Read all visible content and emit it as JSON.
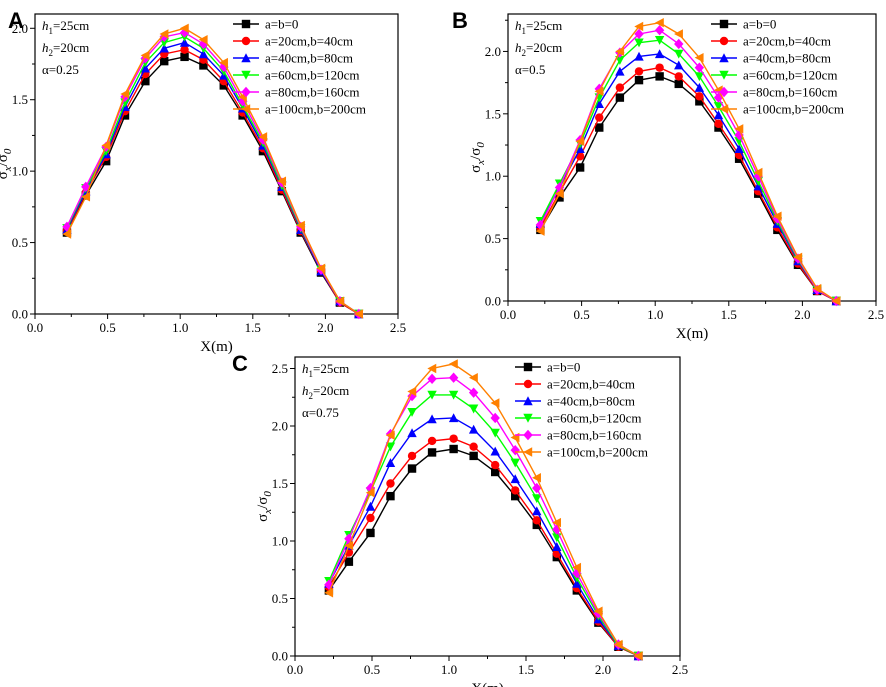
{
  "colors": {
    "black": "#000000",
    "red": "#ff0000",
    "blue": "#0000ff",
    "green": "#00ff00",
    "magenta": "#ff00ff",
    "orange": "#ff8000"
  },
  "chart_data": [
    {
      "id": "A",
      "type": "line",
      "panel_label": "A",
      "xlabel": "X(m)",
      "ylabel": "σx/σ0",
      "xlim": [
        0.0,
        2.5
      ],
      "ylim": [
        0.0,
        2.1
      ],
      "xticks": [
        0.0,
        0.5,
        1.0,
        1.5,
        2.0,
        2.5
      ],
      "xtick_labels": [
        "0.0",
        "0.5",
        "1.0",
        "1.5",
        "2.0",
        "2.5"
      ],
      "yticks": [
        0.0,
        0.5,
        1.0,
        1.5,
        2.0
      ],
      "ytick_labels": [
        "0.0",
        "0.5",
        "1.0",
        "1.5",
        "2.0"
      ],
      "params": [
        "h1=25cm",
        "h2=20cm",
        "α=0.25"
      ],
      "legend_position": "top-right",
      "x": [
        0.22,
        0.35,
        0.49,
        0.62,
        0.76,
        0.89,
        1.03,
        1.16,
        1.3,
        1.43,
        1.57,
        1.7,
        1.83,
        1.97,
        2.1,
        2.23
      ],
      "series": [
        {
          "name": "a=b=0",
          "color": "#000000",
          "marker": "square",
          "values": [
            0.57,
            0.83,
            1.07,
            1.39,
            1.63,
            1.77,
            1.8,
            1.74,
            1.6,
            1.39,
            1.14,
            0.86,
            0.57,
            0.29,
            0.08,
            0.0
          ]
        },
        {
          "name": "a=20cm,b=40cm",
          "color": "#ff0000",
          "marker": "circle",
          "values": [
            0.58,
            0.85,
            1.1,
            1.42,
            1.68,
            1.82,
            1.85,
            1.78,
            1.63,
            1.41,
            1.16,
            0.87,
            0.58,
            0.3,
            0.08,
            0.0
          ]
        },
        {
          "name": "a=40cm,b=80cm",
          "color": "#0000ff",
          "marker": "triangle-up",
          "values": [
            0.59,
            0.86,
            1.12,
            1.45,
            1.72,
            1.86,
            1.9,
            1.82,
            1.67,
            1.44,
            1.18,
            0.89,
            0.59,
            0.3,
            0.09,
            0.0
          ]
        },
        {
          "name": "a=60cm,b=120cm",
          "color": "#00ff00",
          "marker": "triangle-down",
          "values": [
            0.6,
            0.88,
            1.14,
            1.48,
            1.76,
            1.9,
            1.94,
            1.86,
            1.7,
            1.46,
            1.2,
            0.9,
            0.6,
            0.31,
            0.09,
            0.0
          ]
        },
        {
          "name": "a=80cm,b=160cm",
          "color": "#ff00ff",
          "marker": "diamond",
          "values": [
            0.61,
            0.89,
            1.17,
            1.52,
            1.79,
            1.94,
            1.97,
            1.89,
            1.73,
            1.49,
            1.22,
            0.92,
            0.61,
            0.31,
            0.09,
            0.0
          ]
        },
        {
          "name": "a=100cm,b=200cm",
          "color": "#ff8000",
          "marker": "triangle-left",
          "values": [
            0.56,
            0.82,
            1.18,
            1.54,
            1.81,
            1.96,
            2.0,
            1.92,
            1.76,
            1.52,
            1.24,
            0.93,
            0.62,
            0.32,
            0.09,
            0.0
          ]
        }
      ]
    },
    {
      "id": "B",
      "type": "line",
      "panel_label": "B",
      "xlabel": "X(m)",
      "ylabel": "σx/σ0",
      "xlim": [
        0.0,
        2.5
      ],
      "ylim": [
        0.0,
        2.3
      ],
      "xticks": [
        0.0,
        0.5,
        1.0,
        1.5,
        2.0,
        2.5
      ],
      "xtick_labels": [
        "0.0",
        "0.5",
        "1.0",
        "1.5",
        "2.0",
        "2.5"
      ],
      "yticks": [
        0.0,
        0.5,
        1.0,
        1.5,
        2.0
      ],
      "ytick_labels": [
        "0.0",
        "0.5",
        "1.0",
        "1.5",
        "2.0"
      ],
      "params": [
        "h1=25cm",
        "h2=20cm",
        "α=0.5"
      ],
      "legend_position": "top-right",
      "x": [
        0.22,
        0.35,
        0.49,
        0.62,
        0.76,
        0.89,
        1.03,
        1.16,
        1.3,
        1.43,
        1.57,
        1.7,
        1.83,
        1.97,
        2.1,
        2.23
      ],
      "series": [
        {
          "name": "a=b=0",
          "color": "#000000",
          "marker": "square",
          "values": [
            0.57,
            0.83,
            1.07,
            1.39,
            1.63,
            1.77,
            1.8,
            1.74,
            1.6,
            1.39,
            1.14,
            0.86,
            0.57,
            0.29,
            0.08,
            0.0
          ]
        },
        {
          "name": "a=20cm,b=40cm",
          "color": "#ff0000",
          "marker": "circle",
          "values": [
            0.59,
            0.87,
            1.16,
            1.47,
            1.71,
            1.84,
            1.87,
            1.8,
            1.64,
            1.42,
            1.17,
            0.88,
            0.59,
            0.3,
            0.08,
            0.0
          ]
        },
        {
          "name": "a=40cm,b=80cm",
          "color": "#0000ff",
          "marker": "triangle-up",
          "values": [
            0.62,
            0.91,
            1.22,
            1.58,
            1.84,
            1.96,
            1.98,
            1.89,
            1.71,
            1.49,
            1.22,
            0.92,
            0.62,
            0.32,
            0.09,
            0.0
          ]
        },
        {
          "name": "a=60cm,b=120cm",
          "color": "#00ff00",
          "marker": "triangle-down",
          "values": [
            0.64,
            0.94,
            1.26,
            1.63,
            1.93,
            2.07,
            2.09,
            1.98,
            1.8,
            1.56,
            1.28,
            0.96,
            0.64,
            0.33,
            0.09,
            0.0
          ]
        },
        {
          "name": "a=80cm,b=160cm",
          "color": "#ff00ff",
          "marker": "diamond",
          "values": [
            0.61,
            0.91,
            1.29,
            1.7,
            1.99,
            2.14,
            2.17,
            2.06,
            1.87,
            1.63,
            1.33,
            1.0,
            0.66,
            0.34,
            0.09,
            0.0
          ]
        },
        {
          "name": "a=100cm,b=200cm",
          "color": "#ff8000",
          "marker": "triangle-left",
          "values": [
            0.56,
            0.86,
            1.28,
            1.68,
            2.0,
            2.2,
            2.23,
            2.14,
            1.95,
            1.69,
            1.38,
            1.03,
            0.68,
            0.35,
            0.1,
            0.0
          ]
        }
      ]
    },
    {
      "id": "C",
      "type": "line",
      "panel_label": "C",
      "xlabel": "X(m)",
      "ylabel": "σx/σ0",
      "xlim": [
        0.0,
        2.5
      ],
      "ylim": [
        0.0,
        2.6
      ],
      "xticks": [
        0.0,
        0.5,
        1.0,
        1.5,
        2.0,
        2.5
      ],
      "xtick_labels": [
        "0.0",
        "0.5",
        "1.0",
        "1.5",
        "2.0",
        "2.5"
      ],
      "yticks": [
        0.0,
        0.5,
        1.0,
        1.5,
        2.0,
        2.5
      ],
      "ytick_labels": [
        "0.0",
        "0.5",
        "1.0",
        "1.5",
        "2.0",
        "2.5"
      ],
      "params": [
        "h1=25cm",
        "h2=20cm",
        "α=0.75"
      ],
      "legend_position": "top-right",
      "x": [
        0.22,
        0.35,
        0.49,
        0.62,
        0.76,
        0.89,
        1.03,
        1.16,
        1.3,
        1.43,
        1.57,
        1.7,
        1.83,
        1.97,
        2.1,
        2.23
      ],
      "series": [
        {
          "name": "a=b=0",
          "color": "#000000",
          "marker": "square",
          "values": [
            0.57,
            0.82,
            1.07,
            1.39,
            1.63,
            1.77,
            1.8,
            1.74,
            1.6,
            1.39,
            1.14,
            0.86,
            0.57,
            0.29,
            0.08,
            0.0
          ]
        },
        {
          "name": "a=20cm,b=40cm",
          "color": "#ff0000",
          "marker": "circle",
          "values": [
            0.6,
            0.9,
            1.2,
            1.5,
            1.74,
            1.87,
            1.89,
            1.82,
            1.66,
            1.44,
            1.18,
            0.89,
            0.59,
            0.3,
            0.08,
            0.0
          ]
        },
        {
          "name": "a=40cm,b=80cm",
          "color": "#0000ff",
          "marker": "triangle-up",
          "values": [
            0.63,
            0.96,
            1.3,
            1.68,
            1.94,
            2.06,
            2.07,
            1.97,
            1.78,
            1.54,
            1.26,
            0.95,
            0.63,
            0.32,
            0.09,
            0.0
          ]
        },
        {
          "name": "a=60cm,b=120cm",
          "color": "#00ff00",
          "marker": "triangle-down",
          "values": [
            0.65,
            1.05,
            1.43,
            1.82,
            2.12,
            2.27,
            2.27,
            2.15,
            1.94,
            1.68,
            1.37,
            1.03,
            0.68,
            0.35,
            0.09,
            0.0
          ]
        },
        {
          "name": "a=80cm,b=160cm",
          "color": "#ff00ff",
          "marker": "diamond",
          "values": [
            0.62,
            1.02,
            1.46,
            1.93,
            2.26,
            2.41,
            2.42,
            2.29,
            2.07,
            1.79,
            1.46,
            1.1,
            0.72,
            0.37,
            0.1,
            0.0
          ]
        },
        {
          "name": "a=100cm,b=200cm",
          "color": "#ff8000",
          "marker": "triangle-left",
          "values": [
            0.55,
            0.96,
            1.42,
            1.92,
            2.3,
            2.5,
            2.54,
            2.42,
            2.2,
            1.9,
            1.55,
            1.16,
            0.77,
            0.39,
            0.1,
            0.0
          ]
        }
      ]
    }
  ]
}
